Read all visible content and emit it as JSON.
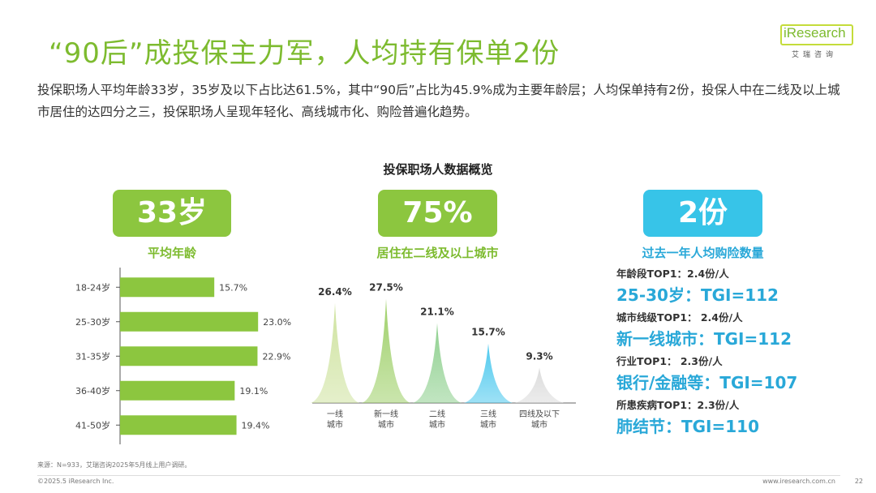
{
  "header": {
    "title": "“90后”成投保主力军，人均持有保单2份",
    "logo_text": "iResearch",
    "logo_sub": "艾瑞咨询",
    "lead": "投保职场人平均年龄33岁，35岁及以下占比达61.5%，其中“90后”占比为45.9%成为主要年龄层；人均保单持有2份，投保人中在二线及以上城市居住的达四分之三，投保职场人呈现年轻化、高线城市化、购险普遍化趋势。"
  },
  "overview_title": "投保职场人数据概览",
  "kpis": {
    "age": {
      "value": "33岁",
      "label": "平均年龄"
    },
    "city": {
      "value": "75%",
      "label": "居住在二线及以上城市"
    },
    "policy": {
      "value": "2份",
      "label": "过去一年人均购险数量"
    }
  },
  "chart_data": [
    {
      "type": "bar",
      "orientation": "horizontal",
      "categories": [
        "18-24岁",
        "25-30岁",
        "31-35岁",
        "36-40岁",
        "41-50岁"
      ],
      "values": [
        15.7,
        23.0,
        22.9,
        19.1,
        19.4
      ],
      "value_labels": [
        "15.7%",
        "23.0%",
        "22.9%",
        "19.1%",
        "19.4%"
      ],
      "unit": "%",
      "xlim": [
        0,
        25
      ],
      "color": "#8cc63f"
    },
    {
      "type": "bar",
      "style": "peak",
      "categories": [
        [
          "一线",
          "城市"
        ],
        [
          "新一线",
          "城市"
        ],
        [
          "二线",
          "城市"
        ],
        [
          "三线",
          "城市"
        ],
        [
          "四线及以下",
          "城市"
        ]
      ],
      "values": [
        26.4,
        27.5,
        21.1,
        15.7,
        9.3
      ],
      "value_labels": [
        "26.4%",
        "27.5%",
        "21.1%",
        "15.7%",
        "9.3%"
      ],
      "unit": "%",
      "ylim": [
        0,
        30
      ],
      "colors": [
        "#cfe3a0",
        "#9fd06a",
        "#8fd08f",
        "#4ec9ee",
        "#dcdcdc"
      ]
    }
  ],
  "stats": [
    {
      "head": "年龄段TOP1：2.4份/人",
      "main": "25-30岁：TGI=112"
    },
    {
      "head": "城市线级TOP1： 2.4份/人",
      "main": "新一线城市：TGI=112"
    },
    {
      "head": "行业TOP1： 2.3份/人",
      "main": "银行/金融等：TGI=107"
    },
    {
      "head": "所患疾病TOP1：2.3份/人",
      "main": "肺结节：TGI=110"
    }
  ],
  "footer": {
    "source": "来源：N=933，艾瑞咨询2025年5月线上用户调研。",
    "copyright": "©2025.5 iResearch Inc.",
    "site": "www.iresearch.com.cn",
    "page": "22"
  }
}
